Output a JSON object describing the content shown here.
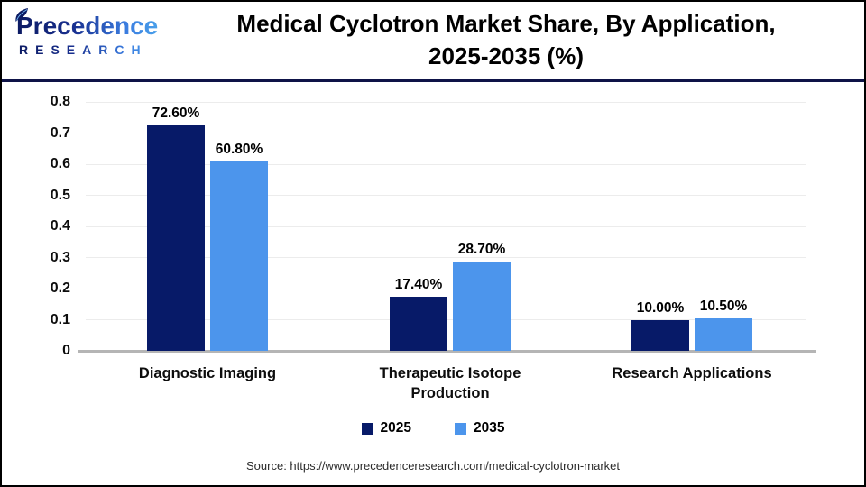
{
  "header": {
    "logo": {
      "brand": "Precedence",
      "sub": "RESEARCH"
    },
    "title_line1": "Medical Cyclotron Market Share, By Application,",
    "title_line2": "2025-2035 (%)"
  },
  "chart_data": {
    "type": "bar",
    "title": "Medical Cyclotron Market Share, By Application, 2025-2035 (%)",
    "categories": [
      "Diagnostic Imaging",
      "Therapeutic Isotope Production",
      "Research Applications"
    ],
    "series": [
      {
        "name": "2025",
        "color": "#071A68",
        "values": [
          0.726,
          0.174,
          0.1
        ],
        "labels": [
          "72.60%",
          "17.40%",
          "10.00%"
        ]
      },
      {
        "name": "2035",
        "color": "#4C95EC",
        "values": [
          0.608,
          0.287,
          0.105
        ],
        "labels": [
          "60.80%",
          "28.70%",
          "10.50%"
        ]
      }
    ],
    "y_ticks": [
      "0",
      "0.1",
      "0.2",
      "0.3",
      "0.4",
      "0.5",
      "0.6",
      "0.7",
      "0.8"
    ],
    "ylim": [
      0,
      0.8
    ],
    "grid": true,
    "legend_position": "bottom"
  },
  "footer": {
    "source": "Source: https://www.precedenceresearch.com/medical-cyclotron-market"
  },
  "colors": {
    "navy": "#071A68",
    "blue": "#4C95EC",
    "header_rule": "#0E1347",
    "axis_line": "#B5B5B5",
    "gridline": "#ECECEC",
    "background": "#FFFFFF",
    "border": "#000000"
  }
}
